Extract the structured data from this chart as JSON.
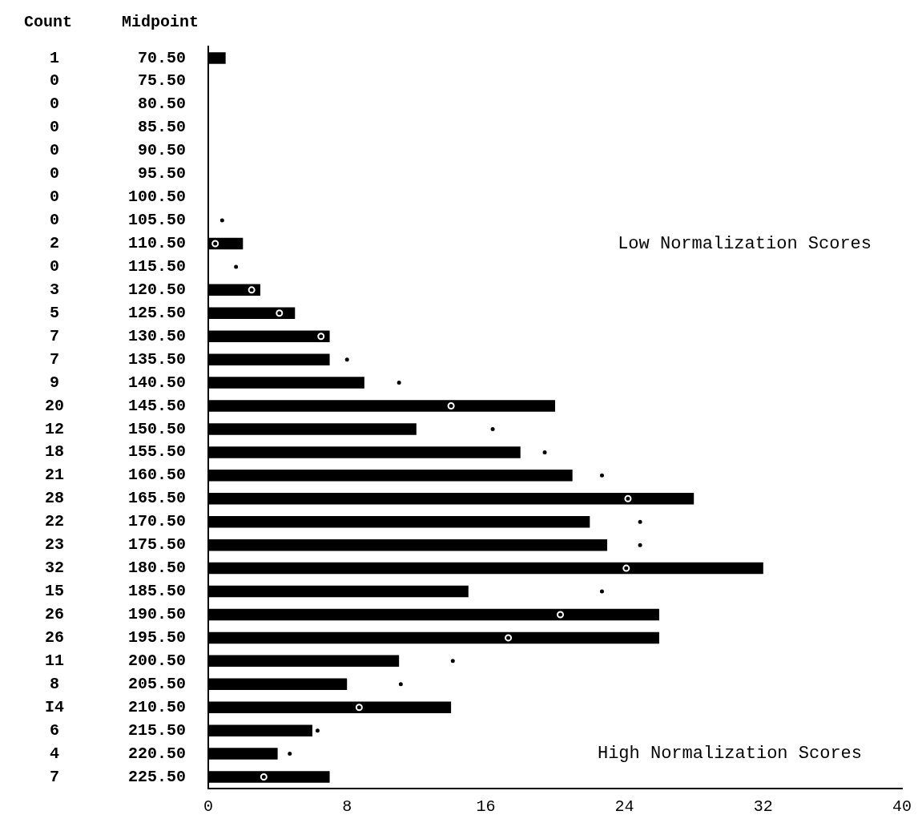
{
  "chart_data": {
    "type": "bar",
    "orientation": "horizontal",
    "ylabel": "Midpoint",
    "categories": [
      "70.50",
      "75.50",
      "80.50",
      "85.50",
      "90.50",
      "95.50",
      "100.50",
      "105.50",
      "110.50",
      "115.50",
      "120.50",
      "125.50",
      "130.50",
      "135.50",
      "140.50",
      "145.50",
      "150.50",
      "155.50",
      "160.50",
      "165.50",
      "170.50",
      "175.50",
      "180.50",
      "185.50",
      "190.50",
      "195.50",
      "200.50",
      "205.50",
      "210.50",
      "215.50",
      "220.50",
      "225.50"
    ],
    "series": [
      {
        "color": "#000000",
        "values": [
          1,
          0,
          0,
          0,
          0,
          0,
          0,
          0,
          2,
          0,
          3,
          5,
          7,
          7,
          9,
          20,
          12,
          18,
          21,
          28,
          22,
          23,
          32,
          15,
          26,
          26,
          11,
          8,
          14,
          6,
          4,
          7
        ],
        "value_labels": [
          "1",
          "0",
          "0",
          "0",
          "0",
          "0",
          "0",
          "0",
          "2",
          "0",
          "3",
          "5",
          "7",
          "7",
          "9",
          "20",
          "12",
          "18",
          "21",
          "28",
          "22",
          "23",
          "32",
          "15",
          "26",
          "26",
          "11",
          "8",
          "I4",
          "6",
          "4",
          "7"
        ]
      },
      {
        "type": "scatter",
        "color": "#000000",
        "marker": "circle",
        "values": [
          null,
          null,
          null,
          null,
          null,
          null,
          null,
          0.8,
          0.4,
          1.6,
          2.5,
          4.1,
          6.5,
          8,
          11,
          14,
          16.4,
          19.4,
          22.7,
          24.2,
          24.9,
          24.9,
          24.1,
          22.7,
          20.3,
          17.3,
          14.1,
          11.1,
          8.7,
          6.3,
          4.7,
          3.2
        ]
      }
    ],
    "xlim": [
      0,
      40
    ],
    "xticks": [
      0,
      8,
      16,
      24,
      32,
      40
    ],
    "grid": false,
    "legend": false,
    "annotations": [
      "Count",
      "Low Normalization Scores",
      "High Normalization Scores"
    ]
  }
}
